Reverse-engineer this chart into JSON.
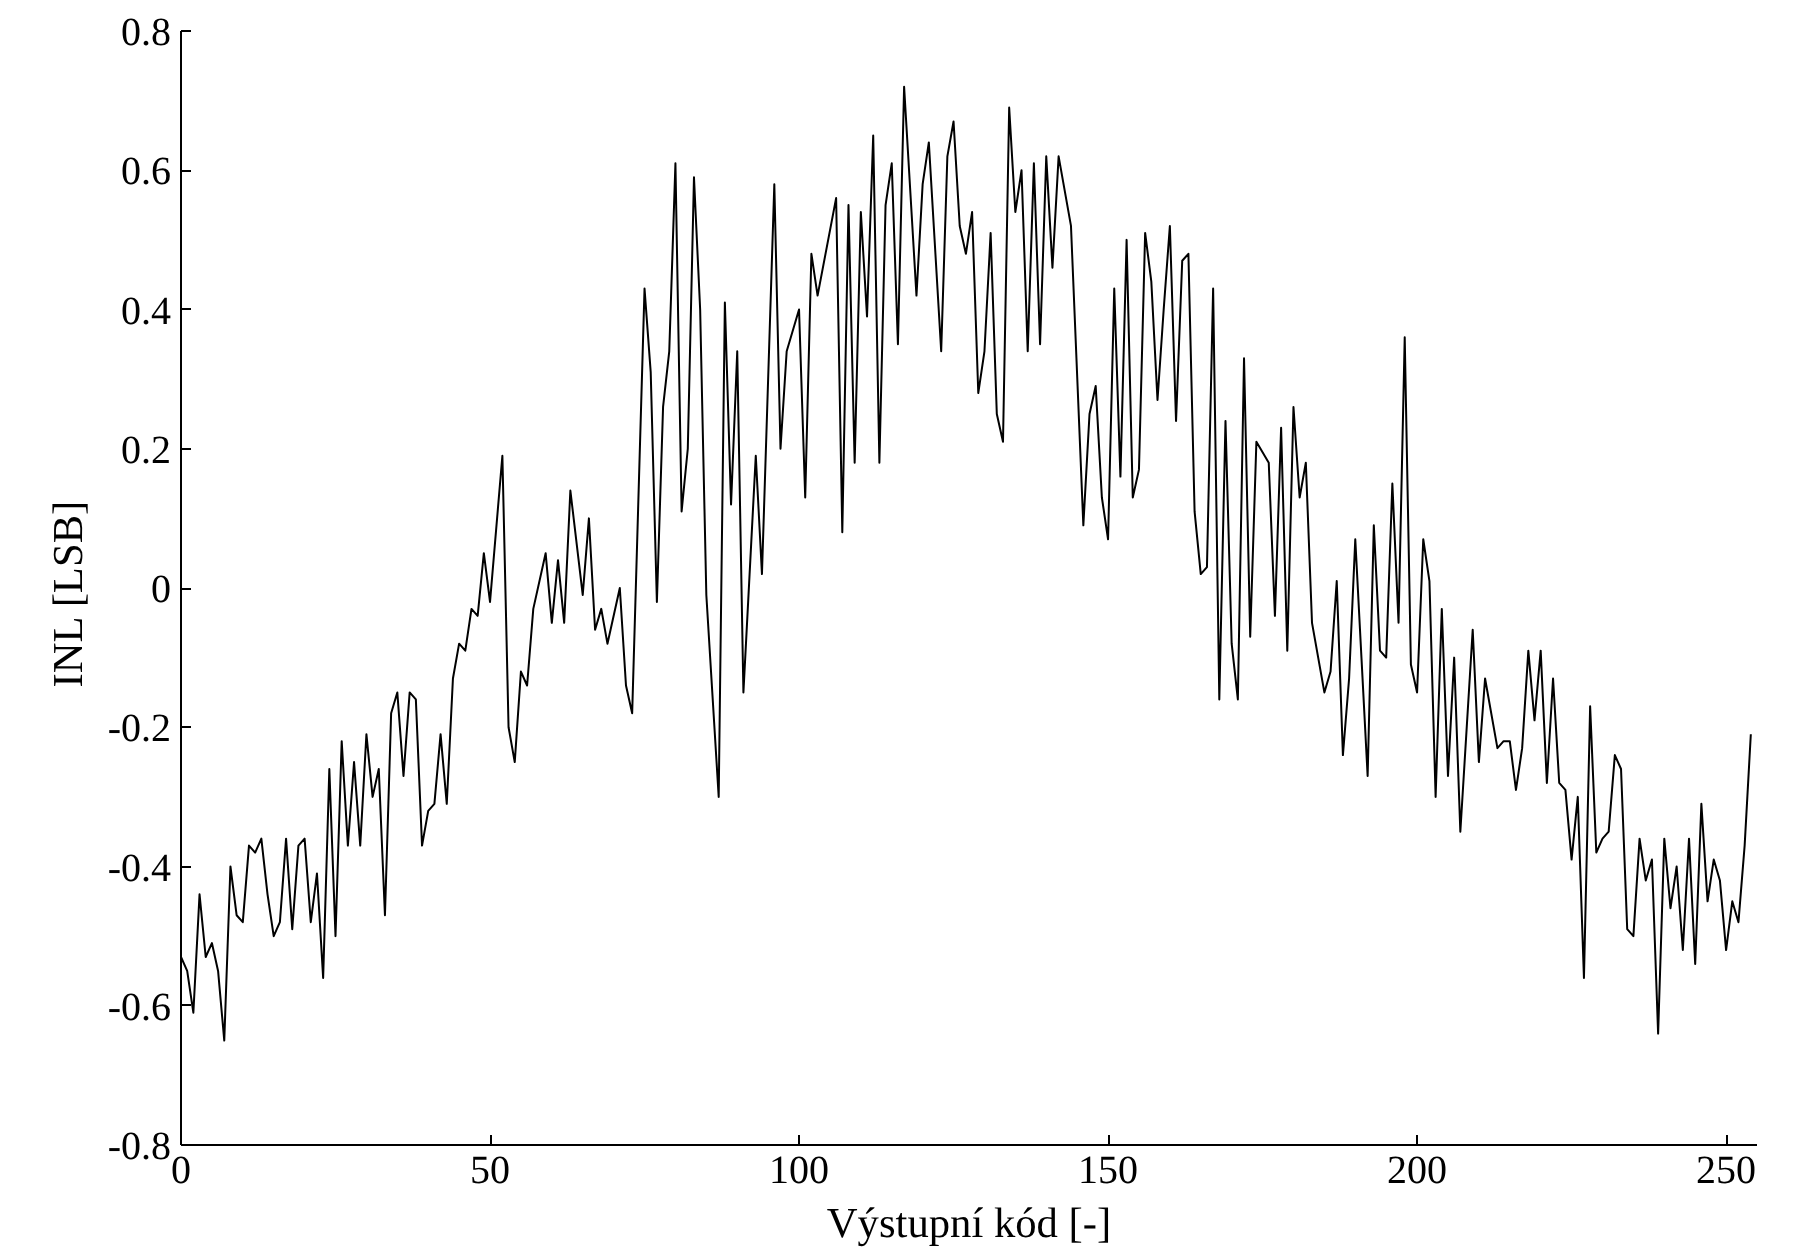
{
  "chart_data": {
    "type": "line",
    "xlabel": "Výstupní kód [-]",
    "ylabel": "INL  [LSB]",
    "xlim": [
      0,
      255
    ],
    "ylim": [
      -0.8,
      0.8
    ],
    "xticks": [
      0,
      50,
      100,
      150,
      200,
      250
    ],
    "yticks": [
      -0.8,
      -0.6,
      -0.4,
      -0.2,
      0,
      0.2,
      0.4,
      0.6,
      0.8
    ],
    "grid": false,
    "marker": "none",
    "line_style": "solid",
    "series": [
      {
        "color": "#000000",
        "x": [
          0,
          1,
          2,
          3,
          4,
          5,
          6,
          7,
          8,
          9,
          10,
          11,
          12,
          13,
          14,
          15,
          16,
          17,
          18,
          19,
          20,
          21,
          22,
          23,
          24,
          25,
          26,
          27,
          28,
          29,
          30,
          31,
          32,
          33,
          34,
          35,
          36,
          37,
          38,
          39,
          40,
          41,
          42,
          43,
          44,
          45,
          46,
          47,
          48,
          49,
          50,
          52,
          53,
          54,
          55,
          56,
          57,
          59,
          60,
          61,
          62,
          63,
          65,
          66,
          67,
          68,
          69,
          71,
          72,
          73,
          75,
          76,
          77,
          78,
          79,
          80,
          81,
          82,
          83,
          84,
          85,
          87,
          88,
          89,
          90,
          91,
          93,
          94,
          96,
          97,
          98,
          100,
          101,
          102,
          103,
          106,
          107,
          108,
          109,
          110,
          111,
          112,
          113,
          114,
          115,
          116,
          117,
          119,
          120,
          121,
          123,
          124,
          125,
          126,
          127,
          128,
          129,
          130,
          131,
          132,
          133,
          134,
          135,
          136,
          137,
          138,
          139,
          140,
          141,
          142,
          144,
          146,
          147,
          148,
          149,
          150,
          151,
          152,
          153,
          154,
          155,
          156,
          157,
          158,
          159,
          160,
          161,
          162,
          163,
          164,
          165,
          166,
          167,
          168,
          169,
          170,
          171,
          172,
          173,
          174,
          176,
          177,
          178,
          179,
          180,
          181,
          182,
          183,
          185,
          186,
          187,
          188,
          189,
          190,
          191,
          192,
          193,
          194,
          195,
          196,
          197,
          198,
          199,
          200,
          201,
          202,
          203,
          204,
          205,
          206,
          207,
          209,
          210,
          211,
          213,
          214,
          215,
          216,
          217,
          218,
          219,
          220,
          221,
          222,
          223,
          224,
          225,
          226,
          227,
          228,
          229,
          230,
          231,
          232,
          233,
          234,
          235,
          236,
          237,
          238,
          239,
          240,
          241,
          242,
          243,
          244,
          245,
          246,
          247,
          248,
          249,
          250,
          251,
          252,
          253,
          254
        ],
        "values": [
          -0.53,
          -0.55,
          -0.61,
          -0.44,
          -0.53,
          -0.51,
          -0.55,
          -0.65,
          -0.4,
          -0.47,
          -0.48,
          -0.37,
          -0.38,
          -0.36,
          -0.44,
          -0.5,
          -0.48,
          -0.36,
          -0.49,
          -0.37,
          -0.36,
          -0.48,
          -0.41,
          -0.56,
          -0.26,
          -0.5,
          -0.22,
          -0.37,
          -0.25,
          -0.37,
          -0.21,
          -0.3,
          -0.26,
          -0.47,
          -0.18,
          -0.15,
          -0.27,
          -0.15,
          -0.16,
          -0.37,
          -0.32,
          -0.31,
          -0.21,
          -0.31,
          -0.13,
          -0.08,
          -0.09,
          -0.03,
          -0.04,
          0.05,
          -0.02,
          0.19,
          -0.2,
          -0.25,
          -0.12,
          -0.14,
          -0.03,
          0.05,
          -0.05,
          0.04,
          -0.05,
          0.14,
          -0.01,
          0.1,
          -0.06,
          -0.03,
          -0.08,
          0.0,
          -0.14,
          -0.18,
          0.43,
          0.31,
          -0.02,
          0.26,
          0.34,
          0.61,
          0.11,
          0.2,
          0.59,
          0.4,
          -0.01,
          -0.3,
          0.41,
          0.12,
          0.34,
          -0.15,
          0.19,
          0.02,
          0.58,
          0.2,
          0.34,
          0.4,
          0.13,
          0.48,
          0.42,
          0.56,
          0.08,
          0.55,
          0.18,
          0.54,
          0.39,
          0.65,
          0.18,
          0.55,
          0.61,
          0.35,
          0.72,
          0.42,
          0.58,
          0.64,
          0.34,
          0.62,
          0.67,
          0.52,
          0.48,
          0.54,
          0.28,
          0.34,
          0.51,
          0.25,
          0.21,
          0.69,
          0.54,
          0.6,
          0.34,
          0.61,
          0.35,
          0.62,
          0.46,
          0.62,
          0.52,
          0.09,
          0.25,
          0.29,
          0.13,
          0.07,
          0.43,
          0.16,
          0.5,
          0.13,
          0.17,
          0.51,
          0.44,
          0.27,
          0.4,
          0.52,
          0.24,
          0.47,
          0.48,
          0.11,
          0.02,
          0.03,
          0.43,
          -0.16,
          0.24,
          -0.08,
          -0.16,
          0.33,
          -0.07,
          0.21,
          0.18,
          -0.04,
          0.23,
          -0.09,
          0.26,
          0.13,
          0.18,
          -0.05,
          -0.15,
          -0.12,
          0.01,
          -0.24,
          -0.13,
          0.07,
          -0.1,
          -0.27,
          0.09,
          -0.09,
          -0.1,
          0.15,
          -0.05,
          0.36,
          -0.11,
          -0.15,
          0.07,
          0.01,
          -0.3,
          -0.03,
          -0.27,
          -0.1,
          -0.35,
          -0.06,
          -0.25,
          -0.13,
          -0.23,
          -0.22,
          -0.22,
          -0.29,
          -0.23,
          -0.09,
          -0.19,
          -0.09,
          -0.28,
          -0.13,
          -0.28,
          -0.29,
          -0.39,
          -0.3,
          -0.56,
          -0.17,
          -0.38,
          -0.36,
          -0.35,
          -0.24,
          -0.26,
          -0.49,
          -0.5,
          -0.36,
          -0.42,
          -0.39,
          -0.64,
          -0.36,
          -0.46,
          -0.4,
          -0.52,
          -0.36,
          -0.54,
          -0.31,
          -0.45,
          -0.39,
          -0.42,
          -0.52,
          -0.45,
          -0.48,
          -0.37,
          -0.21
        ]
      }
    ]
  }
}
